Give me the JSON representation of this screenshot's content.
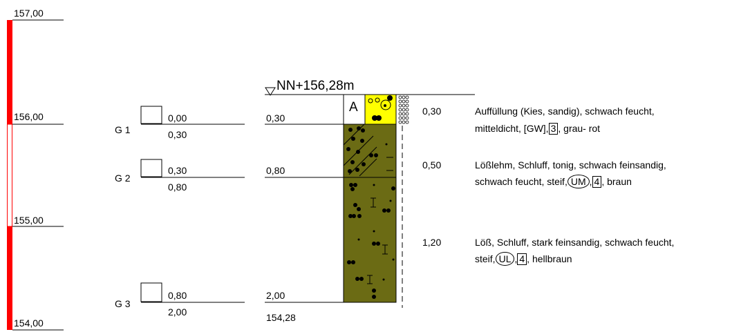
{
  "scale": {
    "labels": [
      "157,00",
      "156,00",
      "155,00",
      "154,00"
    ],
    "bar_colors": {
      "filled": "#ff0000",
      "empty": "#ffffff"
    }
  },
  "samples": [
    {
      "label": "G 1",
      "top": "0,00",
      "bottom": "0,30"
    },
    {
      "label": "G 2",
      "top": "0,30",
      "bottom": "0,80"
    },
    {
      "label": "G 3",
      "top": "0,80",
      "bottom": "2,00"
    }
  ],
  "borehole": {
    "head": "NN+156,28m",
    "column_code": "A",
    "layer_depths": [
      "0,30",
      "0,80",
      "2,00"
    ],
    "bottom_elevation": "154,28",
    "colors": {
      "fill": "#ffff00",
      "loess_loam": "#6b6b14",
      "loess": "#6b6b14"
    }
  },
  "layers": [
    {
      "thickness": "0,30",
      "line1": "Auffüllung (Kies, sandig), schwach feucht,",
      "line2_pre": "mitteldicht, [GW],",
      "line2_box": "3",
      "line2_post": ", grau-  rot"
    },
    {
      "thickness": "0,50",
      "line1": "Lößlehm, Schluff, tonig, schwach feinsandig,",
      "line2_pre": "schwach feucht, steif,",
      "line2_circle": "UM",
      "line2_mid": ",",
      "line2_box": "4",
      "line2_post": ", braun"
    },
    {
      "thickness": "1,20",
      "line1": "Löß, Schluff, stark feinsandig, schwach feucht,",
      "line2_pre": "steif,",
      "line2_circle": "UL",
      "line2_mid": ",",
      "line2_box": "4",
      "line2_post": ", hellbraun"
    }
  ]
}
